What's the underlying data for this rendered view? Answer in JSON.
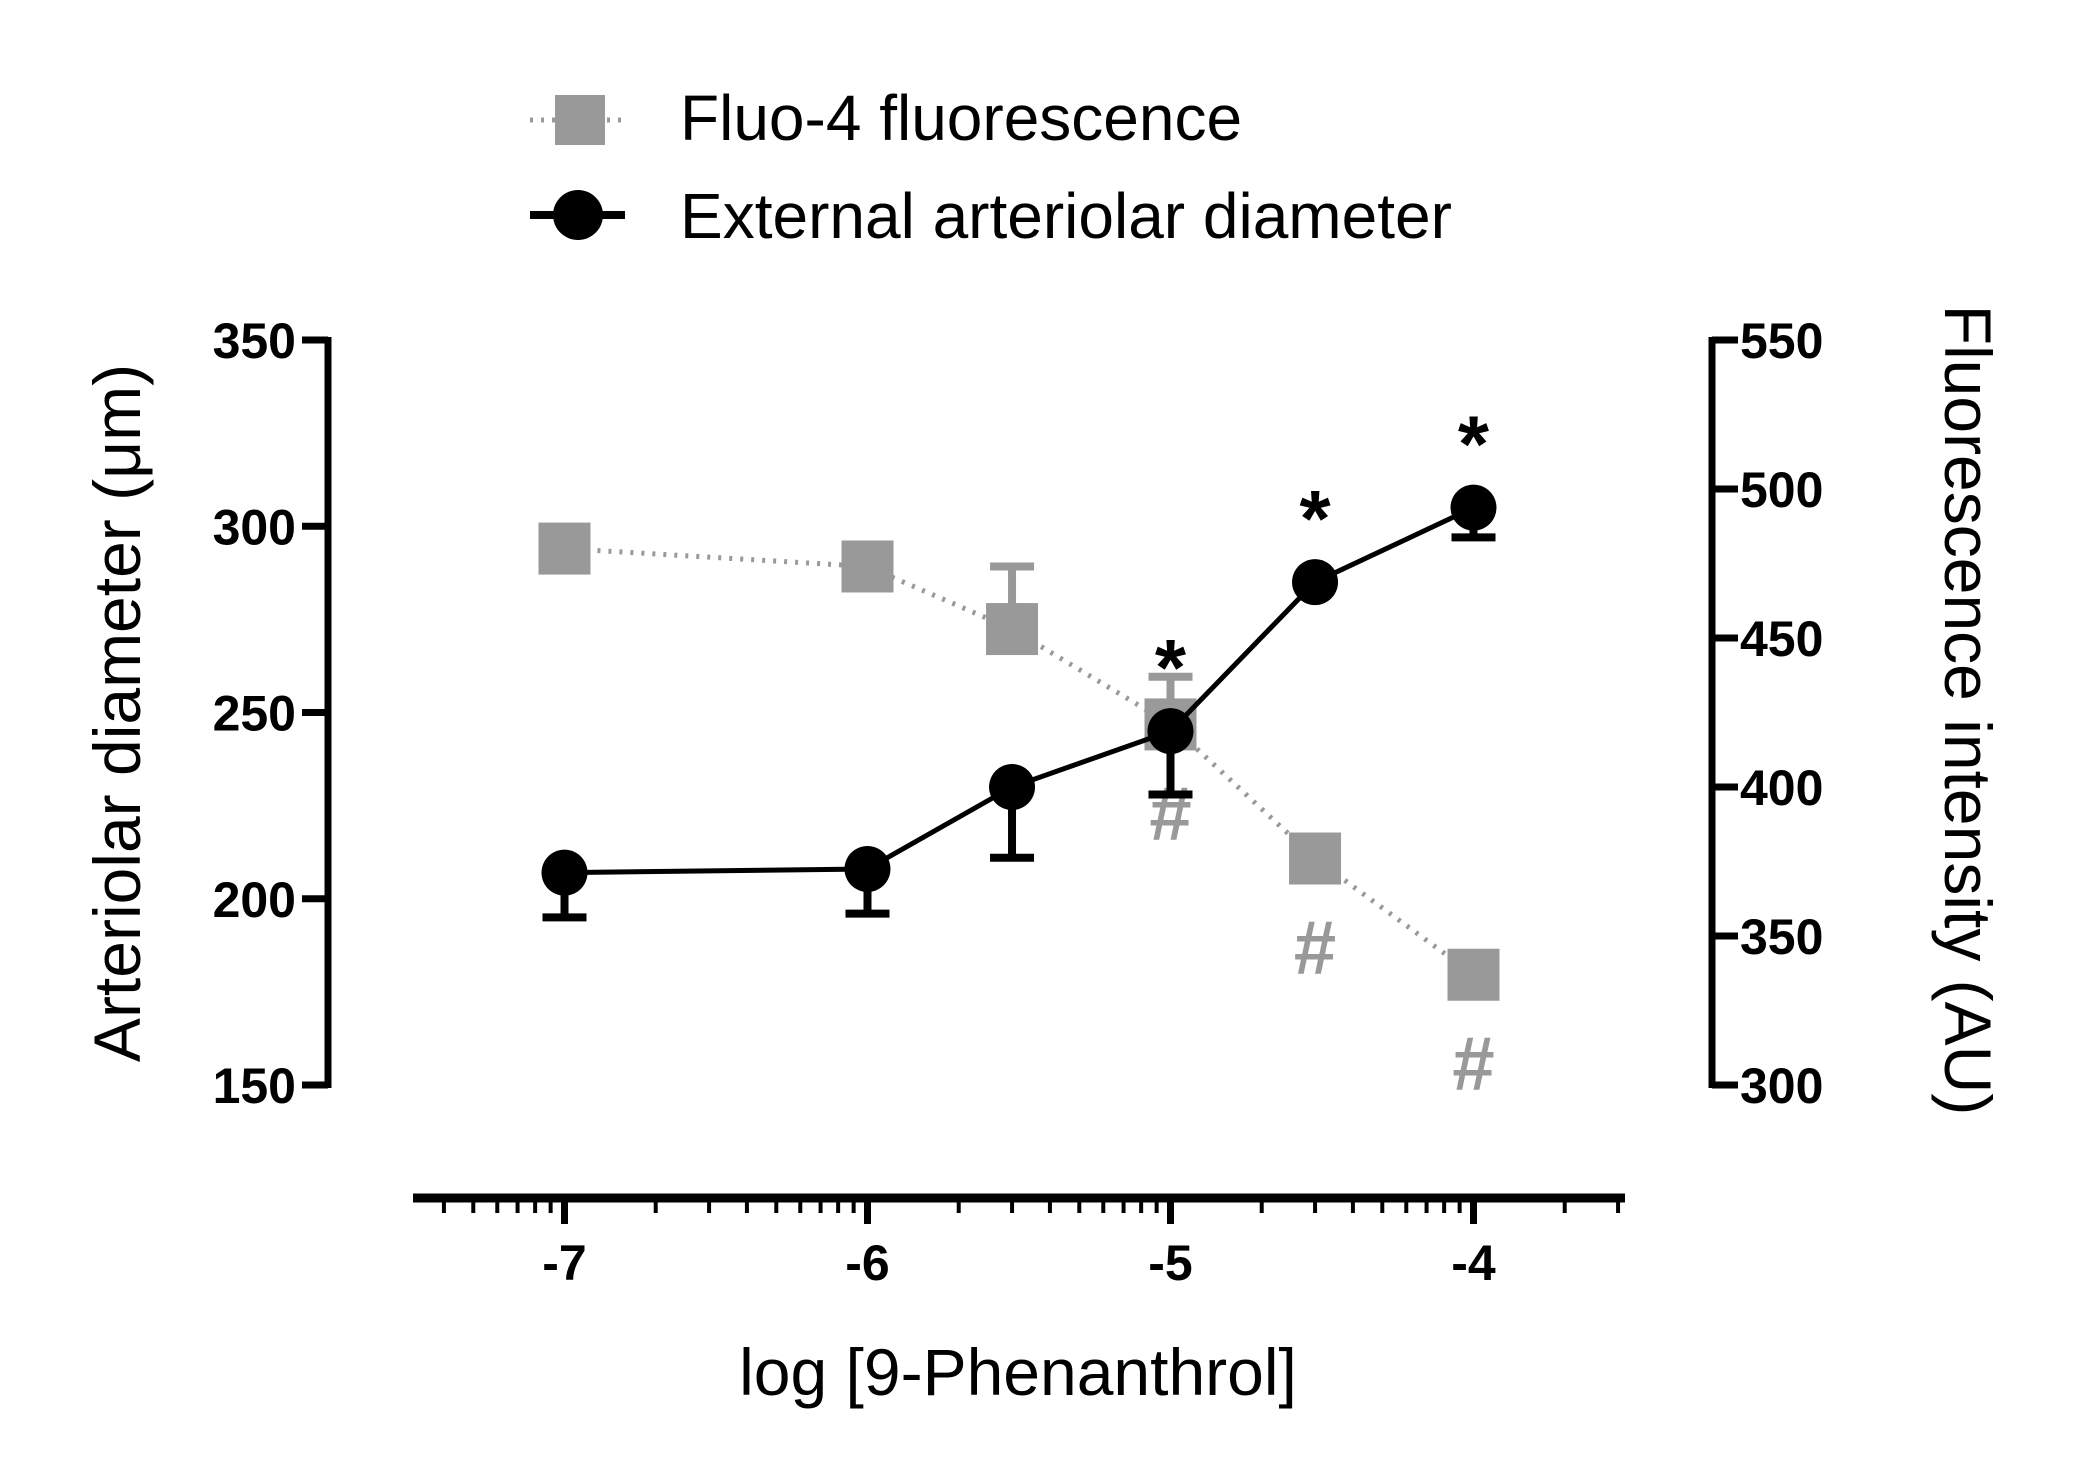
{
  "chart_data": {
    "type": "line",
    "xlabel": "log [9-Phenanthrol]",
    "ylabel_left": "Arteriolar diameter (μm)",
    "ylabel_right": "Fluorescence intensity (AU)",
    "xlim": [
      -7.5,
      -3.5
    ],
    "x_ticks": [
      -7,
      -6,
      -5,
      -4
    ],
    "x_tick_labels": [
      "-7",
      "-6",
      "-5",
      "-4"
    ],
    "ylim_left": [
      150,
      350
    ],
    "y_ticks_left": [
      150,
      200,
      250,
      300,
      350
    ],
    "ylim_right": [
      300,
      550
    ],
    "y_ticks_right": [
      300,
      350,
      400,
      450,
      500,
      550
    ],
    "grid": false,
    "legend_position": "top",
    "series": [
      {
        "name": "Fluo-4 fluorescence",
        "axis": "right",
        "color": "#999999",
        "line_style": "dotted",
        "marker": "square",
        "x": [
          -7,
          -6,
          -5.523,
          -5,
          -4.523,
          -4
        ],
        "y": [
          480,
          474,
          453,
          421,
          376,
          337
        ],
        "error": [
          0,
          0,
          21,
          16,
          0,
          0
        ],
        "annotations": [
          "",
          "",
          "",
          "#",
          "#",
          "#"
        ]
      },
      {
        "name": "External arteriolar diameter",
        "axis": "left",
        "color": "#000000",
        "line_style": "solid",
        "marker": "circle",
        "x": [
          -7,
          -6,
          -5.523,
          -5,
          -4.523,
          -4
        ],
        "y": [
          207,
          208,
          230,
          245,
          285,
          305
        ],
        "error": [
          12,
          12,
          19,
          17,
          0,
          8
        ],
        "annotations": [
          "",
          "",
          "",
          "*",
          "*",
          "*"
        ]
      }
    ]
  }
}
